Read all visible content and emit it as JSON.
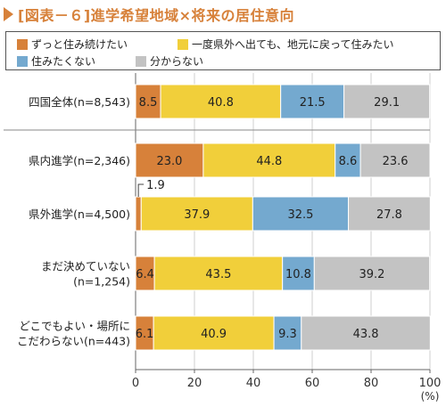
{
  "title": "[図表－６]進学希望地域×将来の居住意向",
  "colors": {
    "accent": "#d7813a",
    "grid": "#cfcfcf",
    "axis": "#666666"
  },
  "legend": [
    {
      "label": "ずっと住み続けたい",
      "color": "#d7813a"
    },
    {
      "label": "一度県外へ出ても、地元に戻って住みたい",
      "color": "#f1cf3a"
    },
    {
      "label": "住みたくない",
      "color": "#74a9cf"
    },
    {
      "label": "分からない",
      "color": "#c3c3c3"
    }
  ],
  "chart_data": {
    "type": "bar",
    "orientation": "horizontal",
    "stacked": true,
    "title": "[図表－６]進学希望地域×将来の居住意向",
    "xlabel": "",
    "ylabel": "",
    "xlim": [
      0,
      100
    ],
    "xticks": [
      "0",
      "20",
      "40",
      "60",
      "80",
      "100"
    ],
    "unit_label": "(%)",
    "grid": true,
    "legend_position": "top",
    "categories": [
      [
        "四国全体(n=8,543)"
      ],
      [
        "県内進学(n=2,346)"
      ],
      [
        "県外進学(n=4,500)"
      ],
      [
        "まだ決めていない",
        "(n=1,254)"
      ],
      [
        "どこでもよい・場所に",
        "こだわらない(n=443)"
      ]
    ],
    "series": [
      {
        "name": "ずっと住み続けたい",
        "color": "#d7813a",
        "values": [
          8.5,
          23.0,
          1.9,
          6.4,
          6.1
        ],
        "labels": [
          "8.5",
          "23.0",
          "1.9",
          "6.4",
          "6.1"
        ]
      },
      {
        "name": "一度県外へ出ても、地元に戻って住みたい",
        "color": "#f1cf3a",
        "values": [
          40.8,
          44.8,
          37.9,
          43.5,
          40.9
        ],
        "labels": [
          "40.8",
          "44.8",
          "37.9",
          "43.5",
          "40.9"
        ]
      },
      {
        "name": "住みたくない",
        "color": "#74a9cf",
        "values": [
          21.5,
          8.6,
          32.5,
          10.8,
          9.3
        ],
        "labels": [
          "21.5",
          "8.6",
          "32.5",
          "10.8",
          "9.3"
        ]
      },
      {
        "name": "分からない",
        "color": "#c3c3c3",
        "values": [
          29.1,
          23.6,
          27.8,
          39.2,
          43.8
        ],
        "labels": [
          "29.1",
          "23.6",
          "27.8",
          "39.2",
          "43.8"
        ]
      }
    ]
  }
}
